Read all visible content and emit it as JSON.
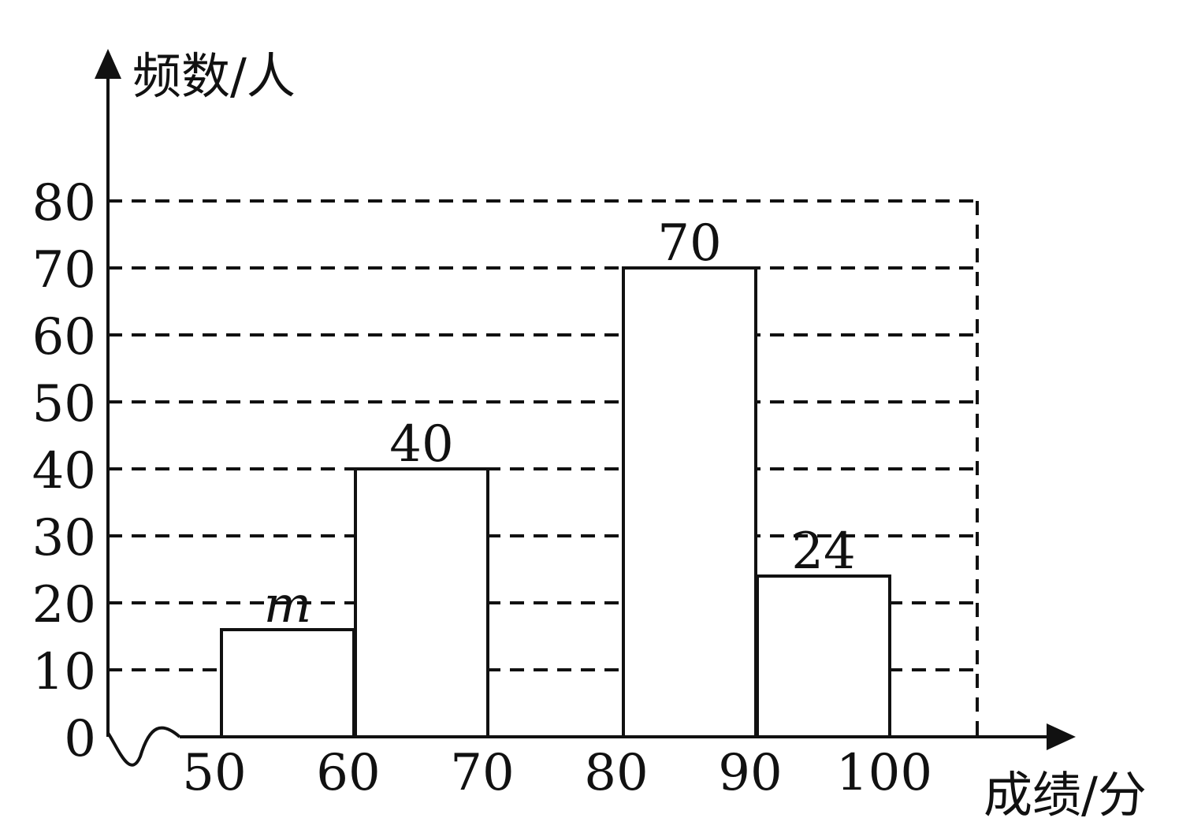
{
  "chart_data": {
    "type": "bar",
    "ylabel": "频数/人",
    "xlabel": "成绩/分",
    "x_ticks": [
      "50",
      "60",
      "70",
      "80",
      "90",
      "100"
    ],
    "y_ticks": [
      "0",
      "10",
      "20",
      "30",
      "40",
      "50",
      "60",
      "70",
      "80"
    ],
    "ylim": [
      0,
      80
    ],
    "bins": [
      {
        "from": 50,
        "to": 60,
        "value": 16,
        "label": "m"
      },
      {
        "from": 60,
        "to": 70,
        "value": 40,
        "label": "40"
      },
      {
        "from": 80,
        "to": 90,
        "value": 70,
        "label": "70"
      },
      {
        "from": 90,
        "to": 100,
        "value": 24,
        "label": "24"
      }
    ],
    "grid": true,
    "colors": {
      "line": "#111111",
      "background": "#ffffff"
    }
  }
}
